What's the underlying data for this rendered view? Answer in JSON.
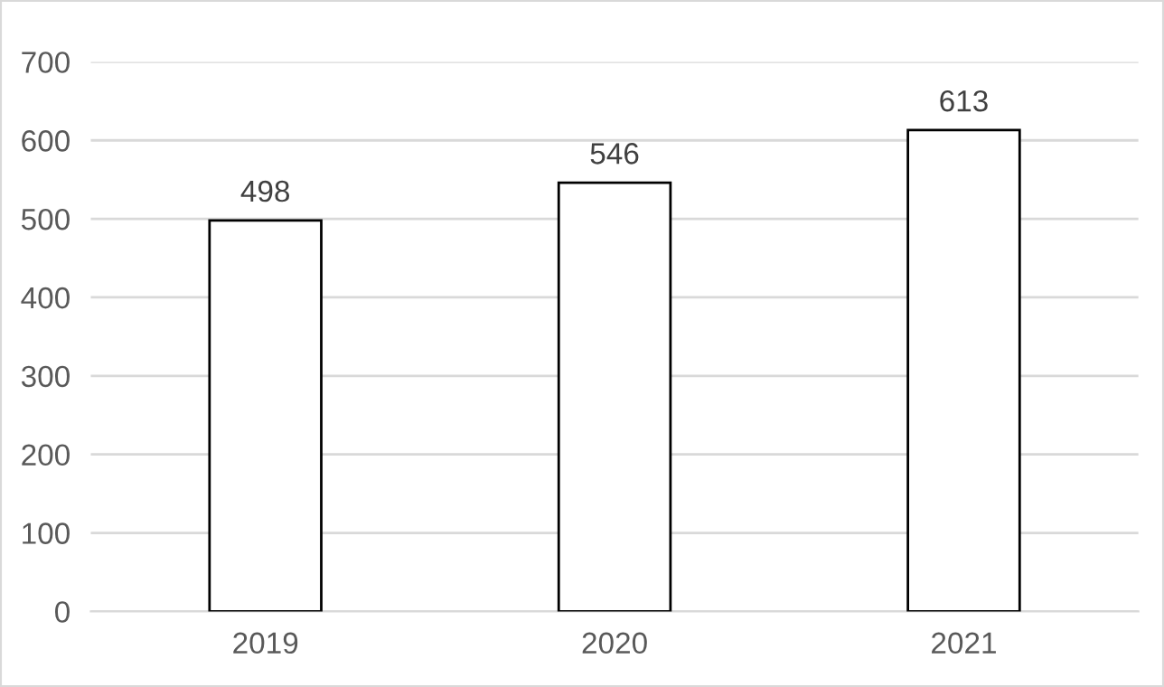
{
  "chart_data": {
    "type": "bar",
    "categories": [
      "2019",
      "2020",
      "2021"
    ],
    "values": [
      498,
      546,
      613
    ],
    "color": "#ffffff",
    "ylim": [
      0,
      700
    ],
    "yticks": [
      0,
      100,
      200,
      300,
      400,
      500,
      600,
      700
    ],
    "grid": "y",
    "data_labels": true
  }
}
